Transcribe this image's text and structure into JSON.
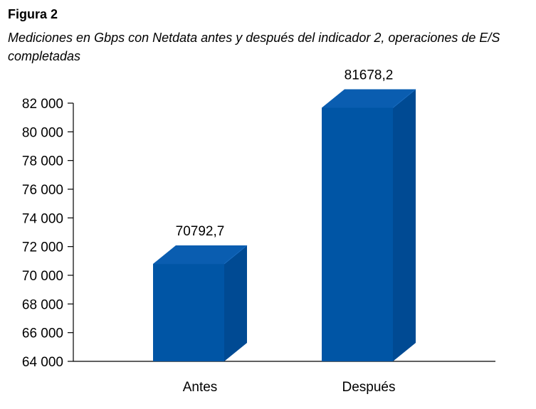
{
  "figure": {
    "label": "Figura 2",
    "caption": "Mediciones en Gbps con Netdata antes y después del indicador 2, operaciones de E/S completadas"
  },
  "colors": {
    "bar_front": "#0055a5",
    "bar_top": "#0a5db0",
    "bar_side": "#004a93",
    "axis": "#000000"
  },
  "chart_data": {
    "type": "bar",
    "title": "",
    "xlabel": "",
    "ylabel": "",
    "categories": [
      "Antes",
      "Después"
    ],
    "series": [
      {
        "values": [
          70792.7,
          81678.2
        ]
      }
    ],
    "data_labels": [
      "70792,7",
      "81678,2"
    ],
    "ylim": [
      64000,
      82000
    ],
    "yticks": [
      64000,
      66000,
      68000,
      70000,
      72000,
      74000,
      76000,
      78000,
      80000,
      82000
    ],
    "ytick_labels": [
      "64 000",
      "66 000",
      "68 000",
      "70 000",
      "72 000",
      "74 000",
      "76 000",
      "78 000",
      "80 000",
      "82 000"
    ],
    "grid": false,
    "legend": "none",
    "style": "3d-column"
  }
}
